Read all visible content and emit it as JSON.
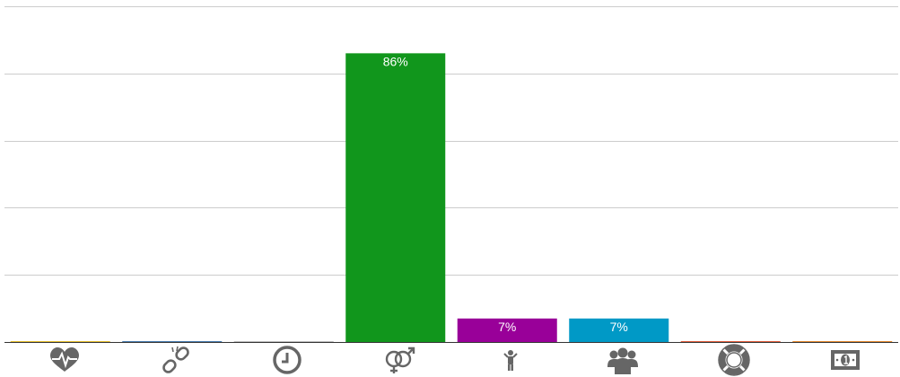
{
  "chart_data": {
    "type": "bar",
    "categories": [
      "health",
      "link",
      "time",
      "gender",
      "person",
      "group",
      "support",
      "money"
    ],
    "icons": [
      "heartbeat-icon",
      "broken-link-icon",
      "clock-icon",
      "gender-icon",
      "child-icon",
      "users-icon",
      "life-ring-icon",
      "money-icon"
    ],
    "values": [
      0,
      0,
      0,
      86,
      7,
      7,
      0,
      0
    ],
    "labels": [
      "",
      "",
      "",
      "86%",
      "7%",
      "7%",
      "",
      ""
    ],
    "colors": [
      "#e0b000",
      "#1f5fa0",
      "#b0b0b0",
      "#11961c",
      "#990099",
      "#0099c6",
      "#dc3912",
      "#e07000"
    ],
    "ylim": [
      0,
      100
    ],
    "grid": true,
    "title": "",
    "xlabel": "",
    "ylabel": ""
  }
}
